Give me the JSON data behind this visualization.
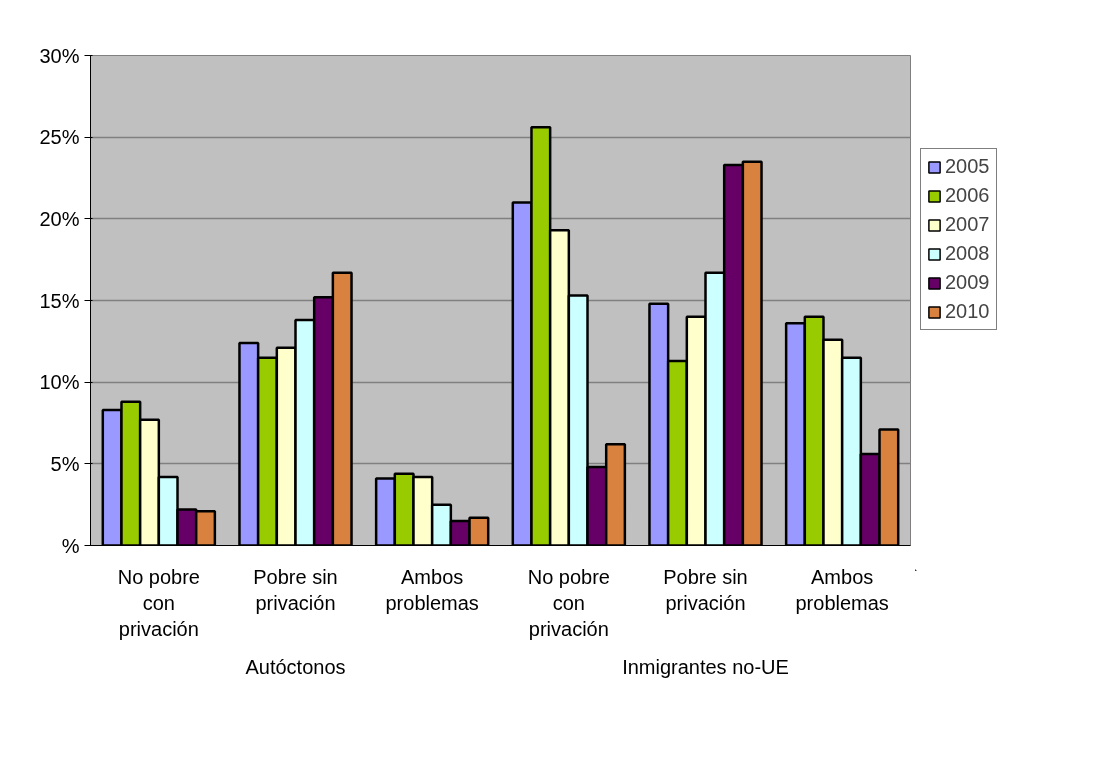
{
  "chart_data": {
    "type": "bar",
    "categories": [
      "No pobre con privación",
      "Pobre sin privación",
      "Ambos problemas",
      "No pobre con privación",
      "Pobre sin privación",
      "Ambos problemas"
    ],
    "annotations": [
      "Autóctonos",
      "Inmigrantes no-UE"
    ],
    "series": [
      {
        "name": "2005",
        "color": "#9999ff",
        "values": [
          8.3,
          12.4,
          4.1,
          21.0,
          14.8,
          13.6
        ]
      },
      {
        "name": "2006",
        "color": "#99cc00",
        "values": [
          8.8,
          11.5,
          4.4,
          25.6,
          11.3,
          14.0
        ]
      },
      {
        "name": "2007",
        "color": "#ffffcc",
        "values": [
          7.7,
          12.1,
          4.2,
          19.3,
          14.0,
          12.6
        ]
      },
      {
        "name": "2008",
        "color": "#ccffff",
        "values": [
          4.2,
          13.8,
          2.5,
          15.3,
          16.7,
          11.5
        ]
      },
      {
        "name": "2009",
        "color": "#660066",
        "values": [
          2.2,
          15.2,
          1.5,
          4.8,
          23.3,
          5.6
        ]
      },
      {
        "name": "2010",
        "color": "#d9823f",
        "values": [
          2.1,
          16.7,
          1.7,
          6.2,
          23.5,
          7.1
        ]
      }
    ],
    "ylim": [
      0,
      30
    ],
    "yticks": [
      {
        "value": 0,
        "label": "%"
      },
      {
        "value": 5,
        "label": "5%"
      },
      {
        "value": 10,
        "label": "10%"
      },
      {
        "value": 15,
        "label": "15%"
      },
      {
        "value": 20,
        "label": "20%"
      },
      {
        "value": 25,
        "label": "25%"
      },
      {
        "value": 30,
        "label": "30%"
      }
    ],
    "grid": "y",
    "legend": "right"
  }
}
